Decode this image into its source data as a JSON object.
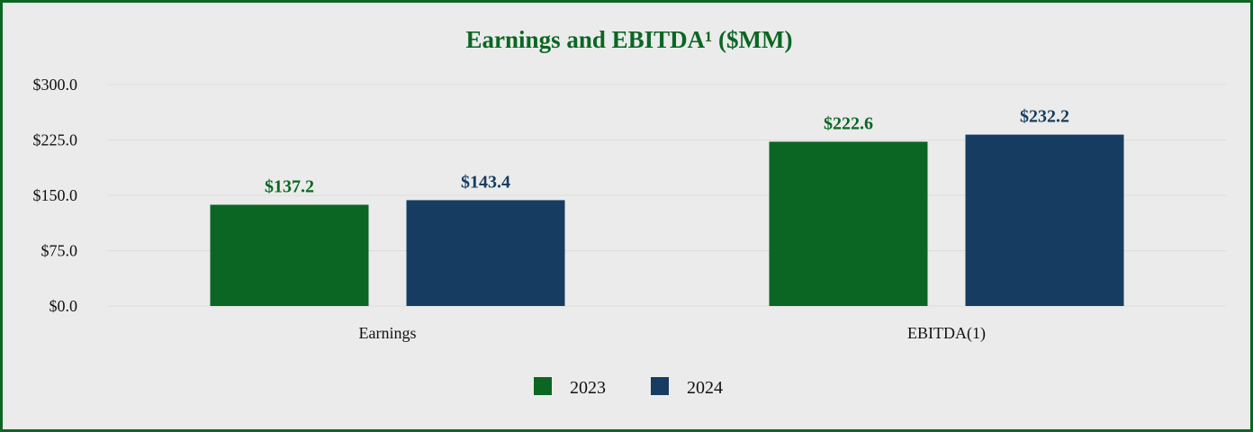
{
  "chart_data": {
    "type": "bar",
    "title": "Earnings and EBITDA¹ ($MM)",
    "categories": [
      "Earnings",
      "EBITDA(1)"
    ],
    "series": [
      {
        "name": "2023",
        "values": [
          137.2,
          222.6
        ],
        "labels": [
          "$137.2",
          "$222.6"
        ],
        "color": "#0b6623"
      },
      {
        "name": "2024",
        "values": [
          143.4,
          232.2
        ],
        "labels": [
          "$143.4",
          "$232.2"
        ],
        "color": "#163d61"
      }
    ],
    "yticks": [
      0,
      75,
      150,
      225,
      300
    ],
    "ytick_labels": [
      "$0.0",
      "$75.0",
      "$150.0",
      "$225.0",
      "$300.0"
    ],
    "ylim": [
      0,
      300
    ],
    "grid": true,
    "legend_position": "bottom-center"
  }
}
